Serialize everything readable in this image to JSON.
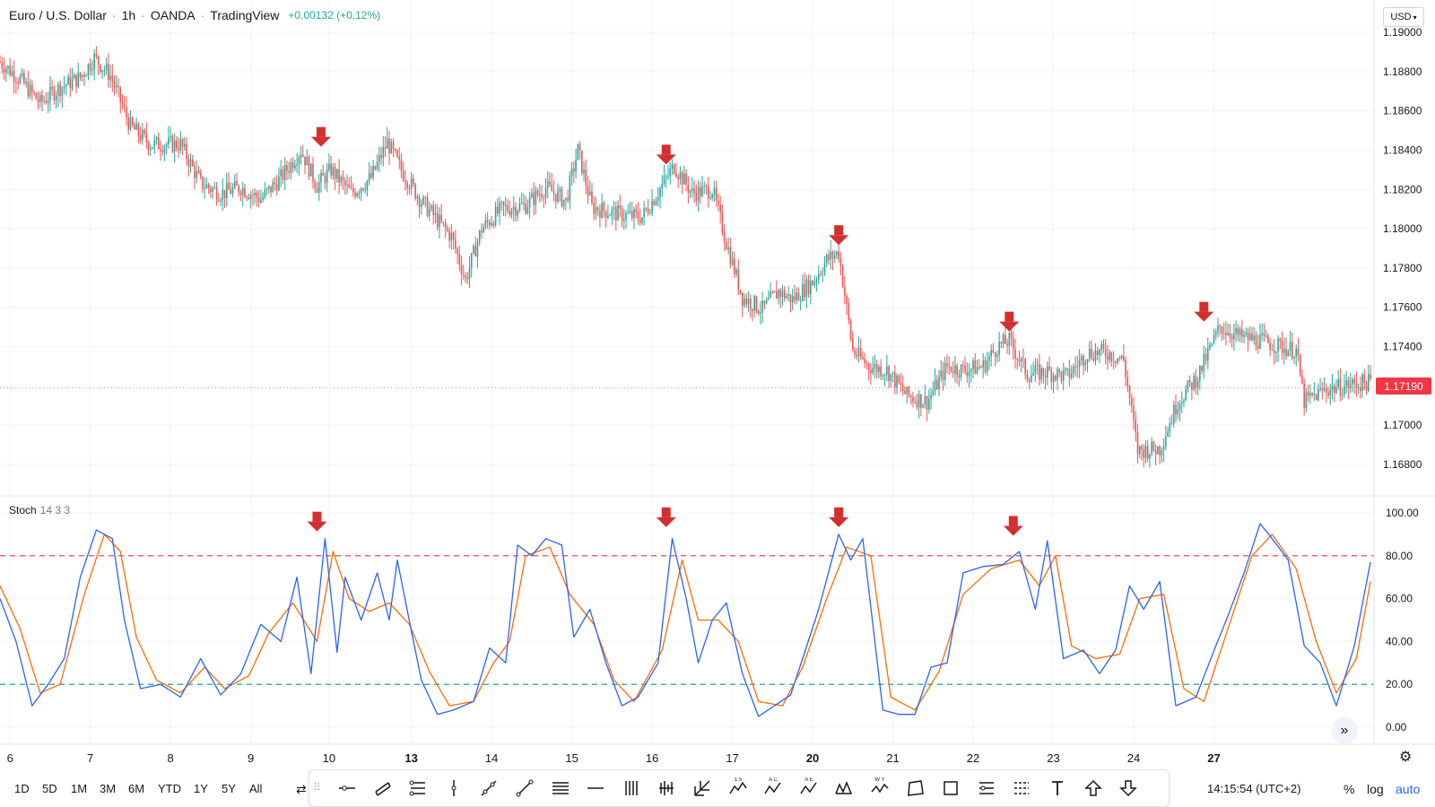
{
  "header": {
    "symbol": "Euro / U.S. Dollar",
    "interval": "1h",
    "broker": "OANDA",
    "source": "TradingView",
    "change": "+0.00132 (+0.12%)"
  },
  "currency_button": "USD",
  "last_price_label": "1.17190",
  "indicator": {
    "name": "Stoch",
    "params": "14 3 3"
  },
  "colors": {
    "up": "#26a69a",
    "down": "#ef5350",
    "k_line": "#2962ff",
    "d_line": "#ff6d00",
    "overbought": "#f23645",
    "oversold": "#089981",
    "arrow": "#d32f2f",
    "accent": "#2962ff"
  },
  "chart_data": [
    {
      "type": "candlestick",
      "title": "Euro / U.S. Dollar · 1h · OANDA",
      "ylim": [
        1.167,
        1.191
      ],
      "y_ticks": [
        "1.19000",
        "1.18800",
        "1.18600",
        "1.18400",
        "1.18200",
        "1.18000",
        "1.17800",
        "1.17600",
        "1.17400",
        "1.17000",
        "1.16800"
      ],
      "x_ticks": [
        "6",
        "7",
        "8",
        "9",
        "10",
        "13",
        "14",
        "15",
        "16",
        "17",
        "20",
        "21",
        "22",
        "23",
        "24",
        "27"
      ],
      "last_price": 1.1719,
      "price_path": [
        [
          0,
          1.1885
        ],
        [
          10,
          1.1876
        ],
        [
          20,
          1.1864
        ],
        [
          30,
          1.1872
        ],
        [
          40,
          1.1877
        ],
        [
          47,
          1.1887
        ],
        [
          55,
          1.1878
        ],
        [
          65,
          1.1852
        ],
        [
          75,
          1.1843
        ],
        [
          90,
          1.1843
        ],
        [
          100,
          1.1823
        ],
        [
          110,
          1.1818
        ],
        [
          120,
          1.1821
        ],
        [
          130,
          1.1815
        ],
        [
          140,
          1.1826
        ],
        [
          150,
          1.184
        ],
        [
          158,
          1.1822
        ],
        [
          165,
          1.183
        ],
        [
          175,
          1.1818
        ],
        [
          185,
          1.1826
        ],
        [
          193,
          1.1844
        ],
        [
          200,
          1.183
        ],
        [
          210,
          1.1814
        ],
        [
          225,
          1.1796
        ],
        [
          232,
          1.1774
        ],
        [
          240,
          1.18
        ],
        [
          250,
          1.181
        ],
        [
          262,
          1.1812
        ],
        [
          272,
          1.1821
        ],
        [
          282,
          1.1814
        ],
        [
          288,
          1.184
        ],
        [
          295,
          1.1811
        ],
        [
          310,
          1.1807
        ],
        [
          320,
          1.1806
        ],
        [
          330,
          1.1822
        ],
        [
          336,
          1.1832
        ],
        [
          345,
          1.1818
        ],
        [
          355,
          1.182
        ],
        [
          362,
          1.1793
        ],
        [
          370,
          1.1765
        ],
        [
          380,
          1.1759
        ],
        [
          388,
          1.1768
        ],
        [
          395,
          1.1764
        ],
        [
          405,
          1.1773
        ],
        [
          412,
          1.1784
        ],
        [
          418,
          1.1788
        ],
        [
          425,
          1.1738
        ],
        [
          433,
          1.173
        ],
        [
          442,
          1.1728
        ],
        [
          452,
          1.1715
        ],
        [
          462,
          1.1712
        ],
        [
          472,
          1.173
        ],
        [
          480,
          1.1728
        ],
        [
          490,
          1.173
        ],
        [
          497,
          1.174
        ],
        [
          503,
          1.1743
        ],
        [
          512,
          1.1726
        ],
        [
          522,
          1.1727
        ],
        [
          532,
          1.1725
        ],
        [
          542,
          1.1737
        ],
        [
          552,
          1.1737
        ],
        [
          560,
          1.1733
        ],
        [
          567,
          1.1687
        ],
        [
          578,
          1.1688
        ],
        [
          587,
          1.1712
        ],
        [
          597,
          1.1725
        ],
        [
          608,
          1.175
        ],
        [
          618,
          1.1745
        ],
        [
          628,
          1.1743
        ],
        [
          638,
          1.174
        ],
        [
          646,
          1.1738
        ],
        [
          650,
          1.1712
        ],
        [
          660,
          1.1718
        ],
        [
          670,
          1.172
        ],
        [
          683,
          1.1722
        ]
      ]
    },
    {
      "type": "line",
      "title": "Stoch 14 3 3",
      "ylim": [
        0,
        100
      ],
      "y_ticks": [
        "100.00",
        "80.00",
        "60.00",
        "40.00",
        "20.00",
        "0.00"
      ],
      "levels": {
        "overbought": 80,
        "oversold": 20
      },
      "series_k": [
        [
          0,
          60
        ],
        [
          8,
          40
        ],
        [
          16,
          10
        ],
        [
          24,
          20
        ],
        [
          32,
          32
        ],
        [
          40,
          70
        ],
        [
          48,
          92
        ],
        [
          56,
          88
        ],
        [
          62,
          50
        ],
        [
          70,
          18
        ],
        [
          80,
          20
        ],
        [
          90,
          14
        ],
        [
          100,
          32
        ],
        [
          110,
          15
        ],
        [
          120,
          25
        ],
        [
          130,
          48
        ],
        [
          140,
          40
        ],
        [
          148,
          70
        ],
        [
          155,
          25
        ],
        [
          162,
          88
        ],
        [
          168,
          35
        ],
        [
          172,
          70
        ],
        [
          180,
          50
        ],
        [
          188,
          72
        ],
        [
          194,
          50
        ],
        [
          198,
          78
        ],
        [
          205,
          45
        ],
        [
          210,
          22
        ],
        [
          218,
          6
        ],
        [
          226,
          8
        ],
        [
          236,
          12
        ],
        [
          244,
          37
        ],
        [
          252,
          30
        ],
        [
          258,
          85
        ],
        [
          265,
          80
        ],
        [
          272,
          88
        ],
        [
          280,
          85
        ],
        [
          286,
          42
        ],
        [
          294,
          55
        ],
        [
          302,
          30
        ],
        [
          310,
          10
        ],
        [
          318,
          14
        ],
        [
          328,
          30
        ],
        [
          335,
          88
        ],
        [
          342,
          60
        ],
        [
          348,
          30
        ],
        [
          355,
          50
        ],
        [
          362,
          58
        ],
        [
          370,
          25
        ],
        [
          378,
          5
        ],
        [
          386,
          10
        ],
        [
          394,
          15
        ],
        [
          400,
          32
        ],
        [
          408,
          55
        ],
        [
          418,
          90
        ],
        [
          424,
          78
        ],
        [
          430,
          88
        ],
        [
          440,
          8
        ],
        [
          448,
          6
        ],
        [
          456,
          6
        ],
        [
          464,
          28
        ],
        [
          472,
          30
        ],
        [
          480,
          72
        ],
        [
          490,
          75
        ],
        [
          500,
          76
        ],
        [
          508,
          82
        ],
        [
          516,
          55
        ],
        [
          522,
          87
        ],
        [
          530,
          32
        ],
        [
          540,
          36
        ],
        [
          548,
          25
        ],
        [
          556,
          36
        ],
        [
          563,
          66
        ],
        [
          570,
          55
        ],
        [
          578,
          68
        ],
        [
          586,
          10
        ],
        [
          596,
          14
        ],
        [
          606,
          38
        ],
        [
          612,
          52
        ],
        [
          620,
          72
        ],
        [
          628,
          95
        ],
        [
          634,
          88
        ],
        [
          642,
          78
        ],
        [
          650,
          38
        ],
        [
          658,
          30
        ],
        [
          666,
          10
        ],
        [
          675,
          38
        ],
        [
          683,
          77
        ]
      ],
      "series_d": [
        [
          0,
          66
        ],
        [
          10,
          46
        ],
        [
          20,
          16
        ],
        [
          30,
          20
        ],
        [
          42,
          62
        ],
        [
          52,
          90
        ],
        [
          60,
          82
        ],
        [
          68,
          42
        ],
        [
          78,
          22
        ],
        [
          90,
          16
        ],
        [
          102,
          28
        ],
        [
          112,
          18
        ],
        [
          124,
          24
        ],
        [
          134,
          44
        ],
        [
          146,
          58
        ],
        [
          158,
          40
        ],
        [
          166,
          82
        ],
        [
          174,
          60
        ],
        [
          184,
          54
        ],
        [
          194,
          58
        ],
        [
          204,
          48
        ],
        [
          214,
          26
        ],
        [
          224,
          10
        ],
        [
          236,
          12
        ],
        [
          246,
          30
        ],
        [
          254,
          40
        ],
        [
          262,
          80
        ],
        [
          274,
          84
        ],
        [
          284,
          62
        ],
        [
          296,
          48
        ],
        [
          306,
          22
        ],
        [
          316,
          12
        ],
        [
          330,
          36
        ],
        [
          340,
          78
        ],
        [
          348,
          50
        ],
        [
          358,
          50
        ],
        [
          368,
          40
        ],
        [
          378,
          12
        ],
        [
          390,
          10
        ],
        [
          400,
          28
        ],
        [
          412,
          60
        ],
        [
          422,
          84
        ],
        [
          434,
          80
        ],
        [
          444,
          14
        ],
        [
          456,
          8
        ],
        [
          468,
          26
        ],
        [
          480,
          62
        ],
        [
          494,
          74
        ],
        [
          508,
          78
        ],
        [
          518,
          66
        ],
        [
          526,
          80
        ],
        [
          534,
          38
        ],
        [
          546,
          32
        ],
        [
          558,
          34
        ],
        [
          568,
          60
        ],
        [
          580,
          62
        ],
        [
          590,
          18
        ],
        [
          600,
          12
        ],
        [
          612,
          46
        ],
        [
          624,
          80
        ],
        [
          634,
          90
        ],
        [
          646,
          74
        ],
        [
          656,
          40
        ],
        [
          666,
          16
        ],
        [
          676,
          32
        ],
        [
          683,
          68
        ]
      ]
    }
  ],
  "signals": [
    {
      "x": 160,
      "pane": "price",
      "value": 1.1839
    },
    {
      "x": 332,
      "pane": "price",
      "value": 1.183
    },
    {
      "x": 418,
      "pane": "price",
      "value": 1.1789
    },
    {
      "x": 503,
      "pane": "price",
      "value": 1.1745
    },
    {
      "x": 600,
      "pane": "price",
      "value": 1.175
    },
    {
      "x": 158,
      "pane": "stoch",
      "value": 88
    },
    {
      "x": 332,
      "pane": "stoch",
      "value": 90
    },
    {
      "x": 418,
      "pane": "stoch",
      "value": 90
    },
    {
      "x": 505,
      "pane": "stoch",
      "value": 86
    }
  ],
  "bottom": {
    "ranges": [
      "1D",
      "5D",
      "1M",
      "3M",
      "6M",
      "YTD",
      "1Y",
      "5Y",
      "All"
    ],
    "tools": [
      "horizontal-ray-icon",
      "parallel-channel-icon",
      "pitchfork-icon",
      "vertical-line-icon",
      "trend-angle-icon",
      "trend-line-icon",
      "fib-retracement-icon",
      "horizontal-line-icon",
      "gann-fan-icon",
      "bars-pattern-icon",
      "arrow-marker-icon",
      "elliott-impulse-icon",
      "abcd-pattern-icon",
      "xabcd-pattern-icon",
      "head-shoulders-icon",
      "wxy-pattern-icon",
      "polygon-icon",
      "rectangle-icon",
      "date-range-icon",
      "price-range-icon",
      "text-icon",
      "arrow-up-icon",
      "arrow-down-icon"
    ],
    "tool_labels": {
      "elliott": "1  5",
      "abcd": "A  C",
      "xabcd": "A  E",
      "wxy": "W  Y"
    },
    "clock": "14:15:54 (UTC+2)",
    "percent": "%",
    "log": "log",
    "auto": "auto"
  }
}
